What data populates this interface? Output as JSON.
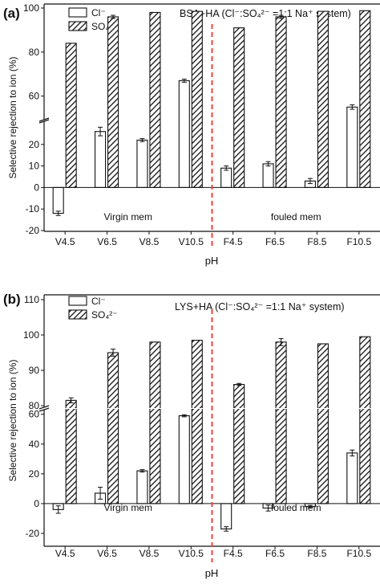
{
  "chart_data": [
    {
      "type": "bar",
      "panel_label": "(a)",
      "title": "BSA+HA (Cl⁻:SO₄²⁻ =1:1 Na⁺ system)",
      "xlabel": "pH",
      "ylabel": "Selective rejection to ion (%)",
      "categories": [
        "V4.5",
        "V6.5",
        "V8.5",
        "V10.5",
        "F4.5",
        "F6.5",
        "F8.5",
        "F10.5"
      ],
      "series": [
        {
          "name": "Cl⁻",
          "values": [
            -12,
            26,
            22,
            67,
            9,
            11,
            3,
            55
          ],
          "errors": [
            1,
            2,
            0.7,
            0.7,
            1,
            1,
            1.2,
            1
          ]
        },
        {
          "name": "SO₄²⁻",
          "values": [
            84,
            96,
            98,
            98.5,
            91,
            96,
            98.5,
            98.8
          ],
          "errors": [
            0,
            0.7,
            0,
            0,
            0,
            0.7,
            0,
            0
          ]
        }
      ],
      "y_break": [
        30,
        50
      ],
      "yticks_lower": [
        -20,
        -10,
        0,
        10,
        20
      ],
      "yticks_upper": [
        60,
        80,
        100
      ],
      "region_labels": [
        "Virgin mem",
        "fouled mem"
      ],
      "divider": "dashed red line between V10.5 and F4.5",
      "legend": "top-left",
      "colors": {
        "divider": "#e8453c",
        "bars": "#222222"
      }
    },
    {
      "type": "bar",
      "panel_label": "(b)",
      "title": "LYS+HA (Cl⁻:SO₄²⁻ =1:1 Na⁺ system)",
      "xlabel": "pH",
      "ylabel": "Selective rejection to ion (%)",
      "categories": [
        "V4.5",
        "V6.5",
        "V8.5",
        "V10.5",
        "F4.5",
        "F6.5",
        "F8.5",
        "F10.5"
      ],
      "series": [
        {
          "name": "Cl⁻",
          "values": [
            -4,
            7,
            22,
            59,
            -17,
            -3,
            -2,
            34
          ],
          "errors": [
            2.5,
            4,
            0.8,
            0.7,
            1.5,
            2,
            0.8,
            2
          ]
        },
        {
          "name": "SO₄²⁻",
          "values": [
            81.5,
            95,
            98,
            98.5,
            86,
            98,
            97.5,
            99.5
          ],
          "errors": [
            0.7,
            1,
            0,
            0,
            0.3,
            1,
            0,
            0
          ]
        }
      ],
      "y_break": [
        62,
        80
      ],
      "yticks_lower": [
        -20,
        0,
        20,
        40,
        60
      ],
      "yticks_upper": [
        80,
        90,
        100,
        110
      ],
      "region_labels": [
        "Virgin mem",
        "fouled mem"
      ],
      "divider": "dashed red line between V10.5 and F4.5",
      "legend": "top-left",
      "colors": {
        "divider": "#e8453c",
        "bars": "#222222"
      }
    }
  ]
}
